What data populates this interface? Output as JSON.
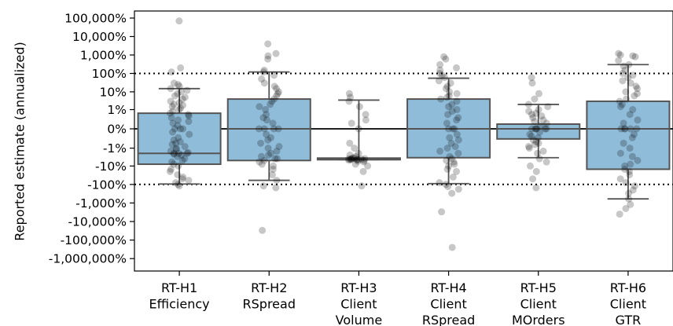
{
  "chart_data": {
    "type": "box",
    "ylabel": "Reported estimate (annualized)",
    "y_scale": "symlog",
    "y_ticks": [
      {
        "value": 1000000,
        "label": "100,000%"
      },
      {
        "value": 100000,
        "label": "10,000%"
      },
      {
        "value": 10000,
        "label": "1,000%"
      },
      {
        "value": 1000,
        "label": "100%"
      },
      {
        "value": 100,
        "label": "10%"
      },
      {
        "value": 10,
        "label": "1%"
      },
      {
        "value": 0,
        "label": "0%"
      },
      {
        "value": -10,
        "label": "-1%"
      },
      {
        "value": -100,
        "label": "-10%"
      },
      {
        "value": -1000,
        "label": "-100%"
      },
      {
        "value": -10000,
        "label": "-1,000%"
      },
      {
        "value": -100000,
        "label": "-10,000%"
      },
      {
        "value": -1000000,
        "label": "-100,000%"
      },
      {
        "value": -10000000,
        "label": "-1,000,000%"
      }
    ],
    "reference_lines": [
      1000,
      -1000
    ],
    "zero_line": true,
    "box_color": "#8fbcd9",
    "categories": [
      {
        "label": [
          "RT-H1",
          "Efficiency"
        ],
        "q1": -80,
        "median": -20,
        "q3": 6,
        "whisker_low": -950,
        "whisker_high": 150
      },
      {
        "label": [
          "RT-H2",
          "RSpread"
        ],
        "q1": -50,
        "median": 0,
        "q3": 40,
        "whisker_low": -600,
        "whisker_high": 1200
      },
      {
        "label": [
          "RT-H3",
          "Client",
          "Volume"
        ],
        "q1": -45,
        "median": -40,
        "q3": -37,
        "whisker_low": -45,
        "whisker_high": 35
      },
      {
        "label": [
          "RT-H4",
          "Client",
          "RSpread"
        ],
        "q1": -35,
        "median": 0,
        "q3": 40,
        "whisker_low": -900,
        "whisker_high": 550
      },
      {
        "label": [
          "RT-H5",
          "Client",
          "MOrders"
        ],
        "q1": -2.5,
        "median": 0,
        "q3": 0.8,
        "whisker_low": -35,
        "whisker_high": 20
      },
      {
        "label": [
          "RT-H6",
          "Client",
          "GTR"
        ],
        "q1": -150,
        "median": 0,
        "q3": 30,
        "whisker_low": -6000,
        "whisker_high": 3000
      }
    ],
    "points": [
      [
        700000,
        2000,
        1200,
        300,
        250,
        200,
        150,
        120,
        100,
        80,
        60,
        50,
        40,
        30,
        25,
        20,
        18,
        15,
        12,
        10,
        8,
        6,
        5,
        4,
        3,
        2,
        1.5,
        1,
        0.5,
        0,
        0,
        0,
        -0.5,
        -1,
        -2,
        -3,
        -4,
        -5,
        -6,
        -8,
        -10,
        -12,
        -15,
        -18,
        -20,
        -20,
        -20,
        -22,
        -25,
        -30,
        -40,
        -50,
        -60,
        -80,
        -100,
        -150,
        -200,
        -300,
        -400,
        -500,
        -600,
        -800,
        -1000,
        -1200
      ],
      [
        40000,
        12000,
        9000,
        6000,
        1500,
        1200,
        800,
        500,
        300,
        200,
        150,
        100,
        80,
        60,
        40,
        30,
        20,
        15,
        10,
        5,
        3,
        2,
        1,
        0,
        0,
        0,
        0,
        -1,
        -2,
        -3,
        -5,
        -8,
        -10,
        -15,
        -20,
        -25,
        -30,
        -40,
        -40,
        -50,
        -60,
        -80,
        -100,
        -150,
        -300,
        -600,
        -1200,
        -1500,
        -300000
      ],
      [
        80,
        50,
        30,
        15,
        5,
        2,
        1,
        0,
        -5,
        -10,
        -20,
        -25,
        -30,
        -35,
        -38,
        -40,
        -40,
        -40,
        -41,
        -42,
        -43,
        -44,
        -45,
        -45,
        -46,
        -48,
        -50,
        -55,
        -60,
        -80,
        -100,
        -200,
        -1200
      ],
      [
        8000,
        6000,
        3000,
        2000,
        1500,
        1000,
        800,
        600,
        400,
        300,
        200,
        150,
        100,
        80,
        60,
        50,
        40,
        30,
        20,
        15,
        10,
        8,
        5,
        3,
        2,
        1,
        0,
        0,
        0,
        -1,
        -2,
        -3,
        -5,
        -8,
        -10,
        -15,
        -20,
        -30,
        -40,
        -50,
        -60,
        -80,
        -100,
        -150,
        -200,
        -400,
        -800,
        -1000,
        -1300,
        -1800,
        -3000,
        -30000,
        -2500000
      ],
      [
        600,
        300,
        80,
        40,
        20,
        15,
        10,
        8,
        6,
        5,
        4,
        3,
        2,
        1.5,
        1,
        0.5,
        0,
        0,
        0,
        0,
        0,
        0,
        -0.5,
        -1,
        -1.5,
        -2,
        -3,
        -4,
        -5,
        -6,
        -8,
        -10,
        -15,
        -20,
        -40,
        -60,
        -100,
        -200,
        -500,
        -1500
      ],
      [
        12000,
        10000,
        9000,
        8000,
        5000,
        3000,
        2500,
        1500,
        1000,
        800,
        600,
        400,
        300,
        200,
        150,
        100,
        80,
        60,
        40,
        30,
        20,
        15,
        10,
        5,
        2,
        1,
        0,
        0,
        0,
        0,
        0,
        -1,
        -2,
        -5,
        -10,
        -20,
        -30,
        -50,
        -80,
        -100,
        -150,
        -200,
        -300,
        -500,
        -800,
        -1200,
        -2000,
        -3000,
        -6000,
        -12000,
        -20000,
        -40000
      ]
    ]
  }
}
